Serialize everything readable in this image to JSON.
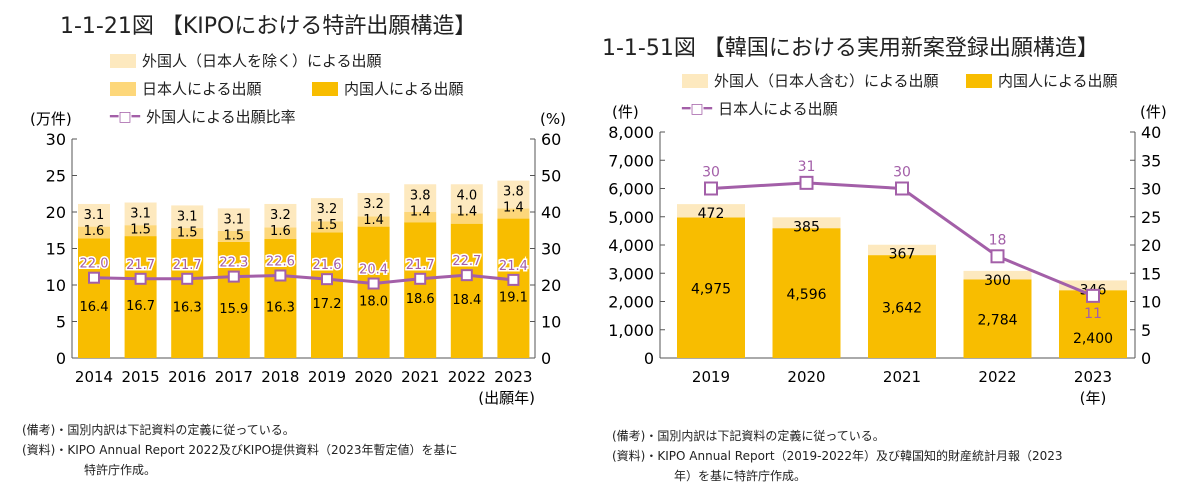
{
  "colors": {
    "foreign": "#fde9bf",
    "japanese": "#fdd77a",
    "domestic": "#f8bd00",
    "line": "#a35fa8"
  },
  "chart_data": [
    {
      "type": "bar",
      "stacked": true,
      "title": "1-1-21図 【KIPOにおける特許出願構造】",
      "categories": [
        "2014",
        "2015",
        "2016",
        "2017",
        "2018",
        "2019",
        "2020",
        "2021",
        "2022",
        "2023"
      ],
      "xlabel": "(出願年)",
      "ylabel": "(万件)",
      "y2label": "(%)",
      "ylim": [
        0,
        30
      ],
      "yticks": [
        0,
        5,
        10,
        15,
        20,
        25,
        30
      ],
      "y2lim": [
        0,
        60
      ],
      "y2ticks": [
        0,
        10,
        20,
        30,
        40,
        50,
        60
      ],
      "series": [
        {
          "name": "内国人による出願",
          "values": [
            16.4,
            16.7,
            16.3,
            15.9,
            16.3,
            17.2,
            18.0,
            18.6,
            18.4,
            19.1
          ]
        },
        {
          "name": "日本人による出願",
          "values": [
            1.6,
            1.5,
            1.5,
            1.5,
            1.6,
            1.5,
            1.4,
            1.4,
            1.4,
            1.4
          ]
        },
        {
          "name": "外国人（日本人を除く）による出願",
          "values": [
            3.1,
            3.1,
            3.1,
            3.1,
            3.2,
            3.2,
            3.2,
            3.8,
            4.0,
            3.8
          ]
        },
        {
          "name": "外国人による出願比率",
          "type": "line",
          "axis": "right",
          "values": [
            22.0,
            21.7,
            21.7,
            22.3,
            22.6,
            21.6,
            20.4,
            21.7,
            22.7,
            21.4
          ]
        }
      ],
      "notes": [
        "(備考)・国別内訳は下記資料の定義に従っている。",
        "(資料)・KIPO Annual Report 2022及びKIPO提供資料（2023年暫定値）を基に",
        "特許庁作成。"
      ]
    },
    {
      "type": "bar",
      "stacked": true,
      "title": "1-1-51図 【韓国における実用新案登録出願構造】",
      "categories": [
        "2019",
        "2020",
        "2021",
        "2022",
        "2023"
      ],
      "xlabel": "(年)",
      "ylabel": "(件)",
      "y2label": "(件)",
      "ylim": [
        0,
        8000
      ],
      "yticks": [
        "0",
        "1,000",
        "2,000",
        "3,000",
        "4,000",
        "5,000",
        "6,000",
        "7,000",
        "8,000"
      ],
      "y2lim": [
        0,
        40
      ],
      "y2ticks": [
        0,
        5,
        10,
        15,
        20,
        25,
        30,
        35,
        40
      ],
      "series": [
        {
          "name": "内国人による出願",
          "values": [
            4975,
            4596,
            3642,
            2784,
            2400
          ],
          "labels": [
            "4,975",
            "4,596",
            "3,642",
            "2,784",
            "2,400"
          ]
        },
        {
          "name": "外国人（日本人含む）による出願",
          "values": [
            472,
            385,
            367,
            300,
            346
          ]
        },
        {
          "name": "日本人による出願",
          "type": "line",
          "axis": "right",
          "values": [
            30,
            31,
            30,
            18,
            11
          ]
        }
      ],
      "notes": [
        "(備考)・国別内訳は下記資料の定義に従っている。",
        "(資料)・KIPO Annual Report（2019-2022年）及び韓国知的財産統計月報（2023",
        "年）を基に特許庁作成。"
      ]
    }
  ]
}
